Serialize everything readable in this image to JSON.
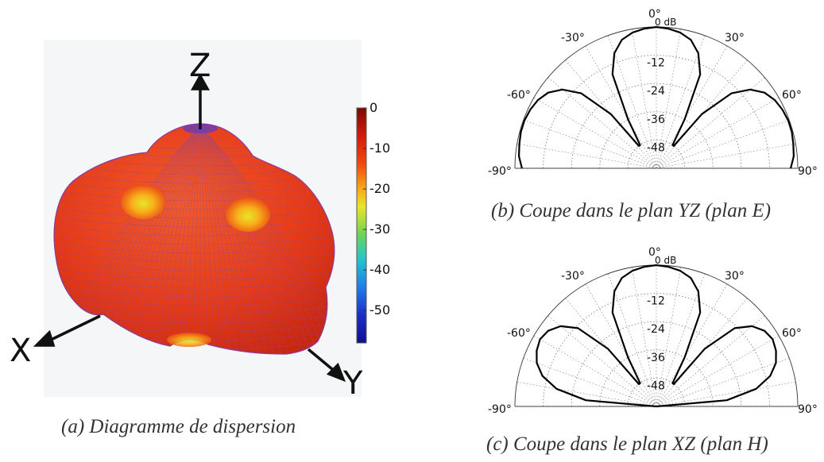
{
  "panel_a": {
    "caption": "(a) Diagramme de dispersion",
    "axes": {
      "z": "Z",
      "x": "X",
      "y": "Y"
    },
    "colorbar": {
      "ticks": [
        "0",
        "-10",
        "-20",
        "-30",
        "-40",
        "-50"
      ],
      "range": [
        -58,
        0
      ],
      "colors": [
        "#7a0a05",
        "#d41a0a",
        "#f04a10",
        "#f7a51a",
        "#e8e52a",
        "#6fd25a",
        "#24c8c8",
        "#1f7fe8",
        "#1a2fc8",
        "#10108a"
      ]
    },
    "surface_color": "#e53a1c",
    "mesh_color": "#7a4aa0"
  },
  "panel_b": {
    "caption": "(b) Coupe dans le plan YZ (plan E)",
    "top_label": "0°",
    "db_label": "0 dB",
    "angle_labels": [
      "-30°",
      "30°",
      "-60°",
      "60°",
      "-90°",
      "90°"
    ],
    "radial_labels": [
      "-12",
      "-24",
      "-36",
      "-48"
    ]
  },
  "panel_c": {
    "caption": "(c) Coupe dans le plan XZ (plan H)",
    "top_label": "0°",
    "db_label": "0 dB",
    "angle_labels": [
      "-30°",
      "30°",
      "-60°",
      "60°",
      "-90°",
      "90°"
    ],
    "radial_labels": [
      "-12",
      "-24",
      "-36",
      "-48"
    ]
  },
  "chart_data": [
    {
      "type": "surface",
      "title": "(a) Diagramme de dispersion",
      "axes": [
        "X",
        "Y",
        "Z"
      ],
      "colorbar_ticks": [
        0,
        -10,
        -20,
        -30,
        -40,
        -50
      ],
      "colorbar_range": [
        -58,
        0
      ]
    },
    {
      "type": "polar",
      "title": "(b) Coupe dans le plan YZ (plan E)",
      "angle_ticks_deg": [
        -90,
        -60,
        -30,
        0,
        30,
        60,
        90
      ],
      "radial_ticks_db": [
        0,
        -12,
        -24,
        -36,
        -48
      ],
      "rlim_db": [
        -60,
        0
      ],
      "series": [
        {
          "theta_deg": [
            -90,
            -85,
            -80,
            -75,
            -70,
            -65,
            -60,
            -55,
            -50,
            -45,
            -40,
            -38,
            -35,
            -30,
            -25,
            -20,
            -15,
            -10,
            -5,
            0,
            5,
            10,
            15,
            20,
            25,
            30,
            35,
            38,
            40,
            45,
            50,
            55,
            60,
            65,
            70,
            75,
            80,
            85,
            90
          ],
          "r_db": [
            -3,
            -1.5,
            -1,
            -0.5,
            -0.5,
            -1,
            -2,
            -4,
            -8,
            -15,
            -30,
            -48,
            -48,
            -36,
            -16,
            -8,
            -3.5,
            -1.5,
            -0.5,
            0,
            -0.5,
            -1.5,
            -3.5,
            -8,
            -16,
            -36,
            -48,
            -48,
            -30,
            -15,
            -8,
            -4,
            -2,
            -1,
            -0.5,
            -0.5,
            -1,
            -1.5,
            -3
          ]
        }
      ]
    },
    {
      "type": "polar",
      "title": "(c) Coupe dans le plan XZ (plan H)",
      "angle_ticks_deg": [
        -90,
        -60,
        -30,
        0,
        30,
        60,
        90
      ],
      "radial_ticks_db": [
        0,
        -12,
        -24,
        -36,
        -48
      ],
      "rlim_db": [
        -60,
        0
      ],
      "series": [
        {
          "theta_deg": [
            -90,
            -85,
            -80,
            -75,
            -70,
            -65,
            -60,
            -55,
            -50,
            -45,
            -40,
            -38,
            -35,
            -30,
            -25,
            -20,
            -15,
            -10,
            -5,
            0,
            5,
            10,
            15,
            20,
            25,
            30,
            35,
            38,
            40,
            45,
            50,
            55,
            60,
            65,
            70,
            75,
            80,
            85,
            90
          ],
          "r_db": [
            -60,
            -30,
            -17,
            -10,
            -6,
            -4,
            -3,
            -4,
            -7,
            -13,
            -28,
            -48,
            -48,
            -36,
            -16,
            -8,
            -3.5,
            -1.5,
            -0.5,
            0,
            -0.5,
            -1.5,
            -3.5,
            -8,
            -16,
            -36,
            -48,
            -48,
            -28,
            -13,
            -7,
            -4,
            -3,
            -4,
            -6,
            -10,
            -17,
            -30,
            -60
          ]
        }
      ]
    }
  ]
}
